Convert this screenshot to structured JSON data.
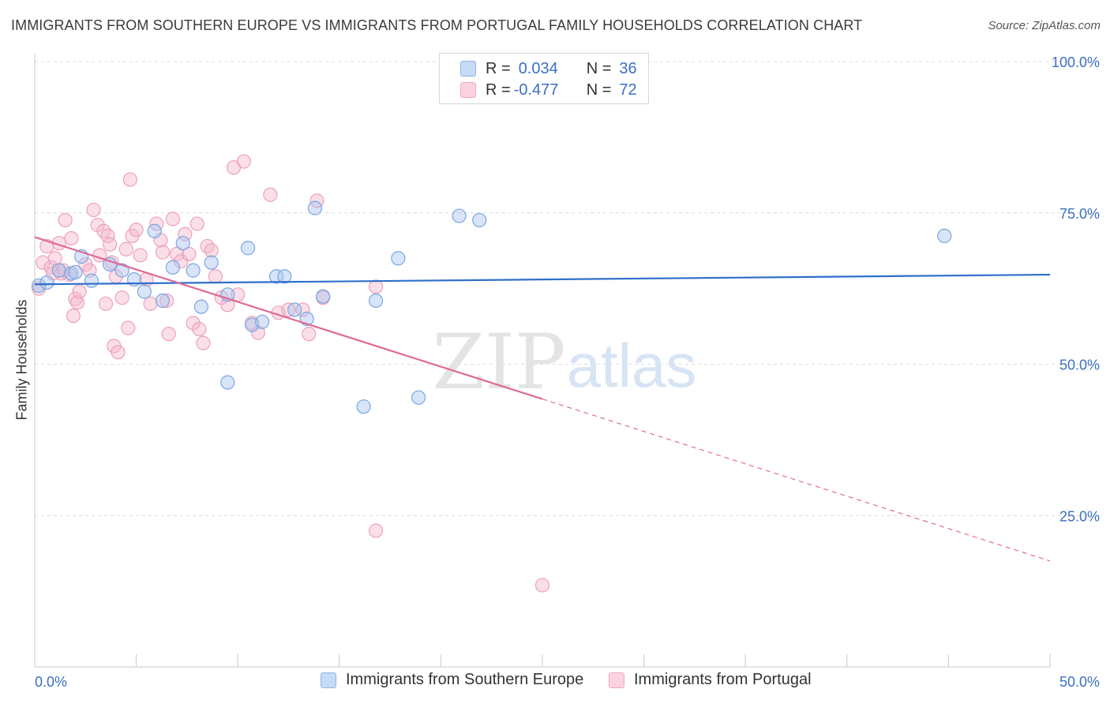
{
  "header": {
    "title": "IMMIGRANTS FROM SOUTHERN EUROPE VS IMMIGRANTS FROM PORTUGAL FAMILY HOUSEHOLDS CORRELATION CHART",
    "source": "Source: ZipAtlas.com"
  },
  "watermark": {
    "zip": "ZIP",
    "atlas": "atlas"
  },
  "legend": {
    "rows": [
      {
        "r_label": "R =",
        "r_value": "0.034",
        "n_label": "N =",
        "n_value": "36",
        "color": "#a8c6f0"
      },
      {
        "r_label": "R =",
        "r_value": "-0.477",
        "n_label": "N =",
        "n_value": "72",
        "color": "#f5b8cb"
      }
    ]
  },
  "bottom_legend": {
    "series1": "Immigrants from Southern Europe",
    "series2": "Immigrants from Portugal"
  },
  "chart_data": {
    "type": "scatter",
    "ylabel": "Family Households",
    "xlim": [
      0,
      50
    ],
    "ylim": [
      0,
      100
    ],
    "x_tick_labels": [
      "0.0%",
      "50.0%"
    ],
    "y_tick_labels": [
      "100.0%",
      "75.0%",
      "50.0%",
      "25.0%"
    ],
    "y_ticks": [
      100,
      75,
      50,
      25
    ],
    "grid": true,
    "colors": {
      "blue": "#6a9ee0",
      "blue_line": "#2f6fcb",
      "pink": "#f09ab6",
      "pink_line": "#e06a94"
    },
    "series": [
      {
        "name": "Immigrants from Southern Europe",
        "color": "#6a9ee0",
        "trend": {
          "x": [
            0,
            50
          ],
          "y": [
            63.2,
            64.8
          ],
          "solid_to": 50
        },
        "points": [
          [
            0.2,
            63.0
          ],
          [
            0.6,
            63.5
          ],
          [
            1.2,
            65.5
          ],
          [
            1.8,
            65.0
          ],
          [
            2.3,
            67.8
          ],
          [
            2.8,
            63.8
          ],
          [
            3.7,
            66.5
          ],
          [
            4.3,
            65.5
          ],
          [
            4.9,
            64.0
          ],
          [
            5.4,
            62.0
          ],
          [
            5.9,
            72.0
          ],
          [
            6.3,
            60.5
          ],
          [
            6.8,
            66.0
          ],
          [
            7.3,
            70.0
          ],
          [
            7.8,
            65.5
          ],
          [
            8.2,
            59.5
          ],
          [
            8.7,
            66.8
          ],
          [
            9.5,
            61.5
          ],
          [
            10.5,
            69.2
          ],
          [
            10.7,
            56.5
          ],
          [
            11.2,
            57.0
          ],
          [
            11.9,
            64.5
          ],
          [
            12.3,
            64.5
          ],
          [
            12.8,
            59.0
          ],
          [
            13.4,
            57.5
          ],
          [
            13.8,
            75.8
          ],
          [
            14.2,
            61.2
          ],
          [
            16.8,
            60.5
          ],
          [
            16.2,
            43.0
          ],
          [
            17.9,
            67.5
          ],
          [
            18.9,
            44.5
          ],
          [
            20.9,
            74.5
          ],
          [
            21.9,
            73.8
          ],
          [
            44.8,
            71.2
          ],
          [
            9.5,
            47.0
          ],
          [
            2.0,
            65.2
          ]
        ]
      },
      {
        "name": "Immigrants from Portugal",
        "color": "#f09ab6",
        "trend": {
          "x": [
            0,
            50
          ],
          "y": [
            71.0,
            17.5
          ],
          "solid_to": 25
        },
        "points": [
          [
            0.2,
            62.5
          ],
          [
            0.4,
            66.8
          ],
          [
            0.6,
            69.5
          ],
          [
            0.8,
            66.0
          ],
          [
            1.0,
            67.5
          ],
          [
            1.2,
            70.0
          ],
          [
            1.3,
            65.0
          ],
          [
            1.5,
            73.8
          ],
          [
            1.7,
            64.8
          ],
          [
            1.8,
            70.8
          ],
          [
            1.9,
            58.0
          ],
          [
            2.0,
            60.8
          ],
          [
            2.1,
            60.2
          ],
          [
            2.2,
            62.0
          ],
          [
            2.5,
            66.5
          ],
          [
            2.7,
            65.5
          ],
          [
            2.9,
            75.5
          ],
          [
            3.1,
            73.0
          ],
          [
            3.2,
            68.0
          ],
          [
            3.4,
            72.0
          ],
          [
            3.6,
            71.2
          ],
          [
            3.7,
            69.8
          ],
          [
            3.8,
            66.8
          ],
          [
            3.9,
            53.0
          ],
          [
            4.0,
            64.5
          ],
          [
            4.1,
            52.0
          ],
          [
            4.3,
            61.0
          ],
          [
            4.5,
            69.0
          ],
          [
            4.6,
            56.0
          ],
          [
            4.8,
            71.2
          ],
          [
            5.0,
            72.2
          ],
          [
            5.2,
            68.0
          ],
          [
            5.5,
            64.0
          ],
          [
            5.7,
            60.0
          ],
          [
            6.0,
            73.2
          ],
          [
            6.2,
            70.5
          ],
          [
            6.3,
            68.5
          ],
          [
            6.5,
            60.5
          ],
          [
            6.6,
            55.0
          ],
          [
            6.8,
            74.0
          ],
          [
            7.0,
            68.2
          ],
          [
            7.2,
            67.0
          ],
          [
            7.4,
            71.5
          ],
          [
            7.6,
            68.2
          ],
          [
            7.8,
            56.8
          ],
          [
            8.0,
            73.2
          ],
          [
            8.1,
            55.8
          ],
          [
            8.3,
            53.5
          ],
          [
            8.5,
            69.5
          ],
          [
            8.7,
            68.8
          ],
          [
            8.9,
            64.5
          ],
          [
            9.2,
            61.0
          ],
          [
            9.5,
            59.8
          ],
          [
            9.8,
            82.5
          ],
          [
            10.0,
            61.5
          ],
          [
            10.3,
            83.5
          ],
          [
            10.7,
            56.8
          ],
          [
            11.0,
            55.2
          ],
          [
            11.6,
            78.0
          ],
          [
            12.0,
            58.5
          ],
          [
            12.5,
            59.0
          ],
          [
            13.2,
            59.0
          ],
          [
            13.5,
            55.0
          ],
          [
            13.9,
            77.0
          ],
          [
            14.2,
            61.0
          ],
          [
            16.8,
            62.8
          ],
          [
            16.8,
            22.5
          ],
          [
            25.0,
            13.5
          ],
          [
            4.7,
            80.5
          ],
          [
            3.5,
            60.0
          ],
          [
            1.4,
            65.5
          ],
          [
            0.9,
            65.0
          ]
        ]
      }
    ]
  }
}
